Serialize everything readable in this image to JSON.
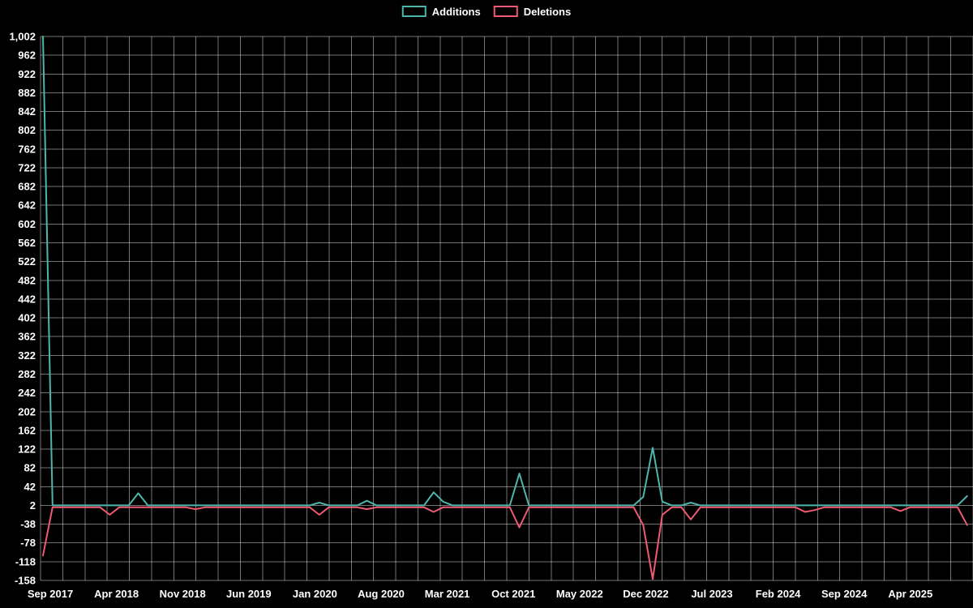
{
  "chart_data": {
    "type": "line",
    "title": "",
    "background": "#000000",
    "axis_text_color": "#ffffff",
    "grid": {
      "color": "rgba(255,255,255,0.45)",
      "vertical_lines": 43,
      "grid_on": true
    },
    "legend_position": "top-center",
    "x_labels": [
      "Sep 2017",
      "Apr 2018",
      "Nov 2018",
      "Jun 2019",
      "Jan 2020",
      "Aug 2020",
      "Mar 2021",
      "Oct 2021",
      "May 2022",
      "Dec 2022",
      "Jul 2023",
      "Feb 2024",
      "Sep 2024",
      "Apr 2025"
    ],
    "months_per_label": 7,
    "month_count": 98,
    "y_min": -158,
    "y_max": 1002,
    "y_step": 40,
    "y_tick_example_labels": [
      "1,002",
      "962",
      "922",
      "2",
      "-38",
      "-158"
    ],
    "series": [
      {
        "name": "Additions",
        "color": "#4db6ac",
        "baseline": 2,
        "spikes": [
          [
            0,
            1002
          ],
          [
            10,
            28
          ],
          [
            29,
            8
          ],
          [
            34,
            12
          ],
          [
            41,
            30
          ],
          [
            42,
            10
          ],
          [
            50,
            70
          ],
          [
            63,
            20
          ],
          [
            64,
            125
          ],
          [
            65,
            10
          ],
          [
            68,
            8
          ],
          [
            97,
            22
          ]
        ]
      },
      {
        "name": "Deletions",
        "color": "#ee5b70",
        "baseline": -2,
        "spikes": [
          [
            0,
            -105
          ],
          [
            7,
            -18
          ],
          [
            16,
            -6
          ],
          [
            29,
            -18
          ],
          [
            34,
            -6
          ],
          [
            41,
            -12
          ],
          [
            50,
            -45
          ],
          [
            63,
            -40
          ],
          [
            64,
            -155
          ],
          [
            65,
            -18
          ],
          [
            68,
            -28
          ],
          [
            80,
            -12
          ],
          [
            81,
            -8
          ],
          [
            90,
            -10
          ],
          [
            97,
            -40
          ]
        ]
      }
    ]
  }
}
